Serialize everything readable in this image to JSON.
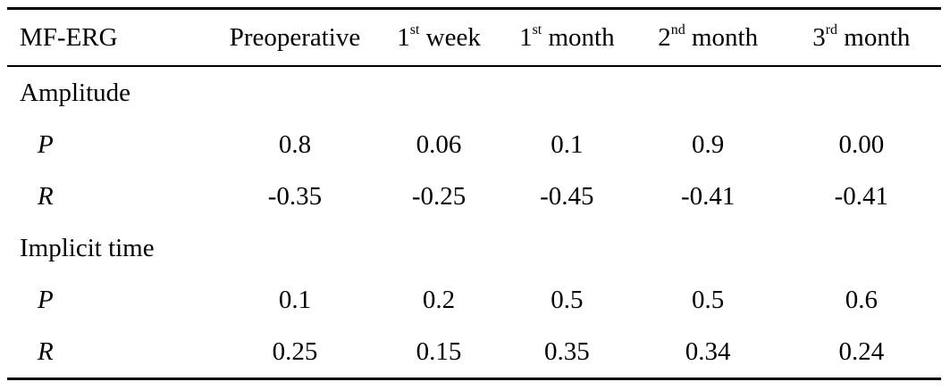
{
  "header": {
    "first": "MF-ERG",
    "columns": [
      {
        "main": "Preoperative",
        "sup": "",
        "rest": ""
      },
      {
        "main": "1",
        "sup": "st",
        "rest": " week"
      },
      {
        "main": "1",
        "sup": "st",
        "rest": " month"
      },
      {
        "main": "2",
        "sup": "nd",
        "rest": " month"
      },
      {
        "main": "3",
        "sup": "rd",
        "rest": " month"
      }
    ]
  },
  "sections": [
    {
      "title": "Amplitude",
      "rows": [
        {
          "stat": "P",
          "values": [
            "0.8",
            "0.06",
            "0.1",
            "0.9",
            "0.00"
          ]
        },
        {
          "stat": "R",
          "values": [
            "-0.35",
            "-0.25",
            "-0.45",
            "-0.41",
            "-0.41"
          ]
        }
      ]
    },
    {
      "title": "Implicit time",
      "rows": [
        {
          "stat": "P",
          "values": [
            "0.1",
            "0.2",
            "0.5",
            "0.5",
            "0.6"
          ]
        },
        {
          "stat": "R",
          "values": [
            "0.25",
            "0.15",
            "0.35",
            "0.34",
            "0.24"
          ]
        }
      ]
    }
  ]
}
